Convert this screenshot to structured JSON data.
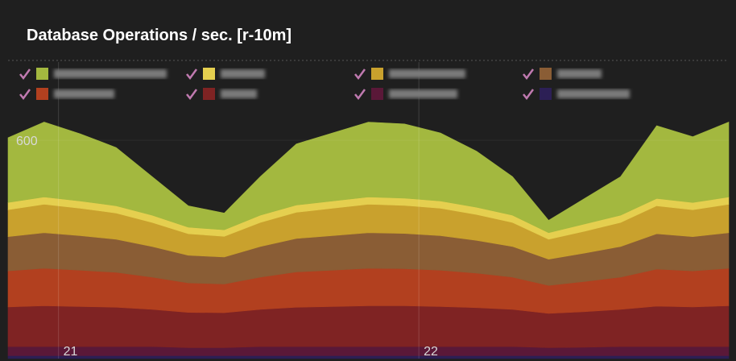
{
  "chart_data": {
    "type": "stacked-area",
    "title": "Database Operations / sec. [r-10m]",
    "x": [
      20.86,
      20.96,
      21.06,
      21.16,
      21.26,
      21.36,
      21.46,
      21.56,
      21.66,
      21.76,
      21.86,
      21.96,
      22.06,
      22.16,
      22.26,
      22.36,
      22.46,
      22.56,
      22.66,
      22.76,
      22.86
    ],
    "xlim": [
      20.86,
      22.86
    ],
    "xticks": [
      21,
      22
    ],
    "ylim": [
      0,
      815
    ],
    "yticks": [
      600
    ],
    "series": [
      {
        "color": "#a3b83f",
        "values": [
          178,
          206,
          185,
          160,
          106,
          59,
          46,
          106,
          168,
          187,
          206,
          204,
          187,
          154,
          106,
          34,
          70,
          106,
          200,
          181,
          206
        ]
      },
      {
        "color": "#e5cf4f",
        "values": [
          20,
          20,
          20,
          20,
          20,
          18,
          18,
          20,
          20,
          20,
          20,
          20,
          20,
          20,
          20,
          18,
          20,
          20,
          20,
          20,
          20
        ]
      },
      {
        "color": "#c9a12d",
        "values": [
          74,
          78,
          75,
          72,
          66,
          59,
          57,
          66,
          72,
          75,
          78,
          77,
          75,
          71,
          66,
          55,
          60,
          66,
          77,
          74,
          78
        ]
      },
      {
        "color": "#8a5d35",
        "values": [
          94,
          98,
          95,
          91,
          84,
          76,
          74,
          84,
          92,
          95,
          98,
          97,
          95,
          90,
          84,
          72,
          78,
          84,
          97,
          94,
          98
        ]
      },
      {
        "color": "#b2401f",
        "values": [
          99,
          103,
          100,
          96,
          89,
          81,
          79,
          89,
          97,
          100,
          103,
          102,
          100,
          95,
          89,
          77,
          83,
          89,
          102,
          99,
          103
        ]
      },
      {
        "color": "#7f2323",
        "values": [
          109,
          112,
          110,
          108,
          102,
          97,
          96,
          102,
          108,
          110,
          112,
          112,
          110,
          107,
          102,
          94,
          98,
          102,
          111,
          109,
          112
        ]
      },
      {
        "color": "#5a1838",
        "values": [
          25,
          25,
          25,
          25,
          25,
          22,
          22,
          25,
          25,
          25,
          25,
          25,
          25,
          25,
          25,
          22,
          23,
          25,
          25,
          25,
          25
        ]
      },
      {
        "color": "#2c1f55",
        "values": [
          8,
          8,
          8,
          8,
          8,
          8,
          8,
          8,
          8,
          8,
          8,
          8,
          8,
          8,
          8,
          8,
          8,
          8,
          8,
          8,
          8
        ]
      }
    ]
  }
}
